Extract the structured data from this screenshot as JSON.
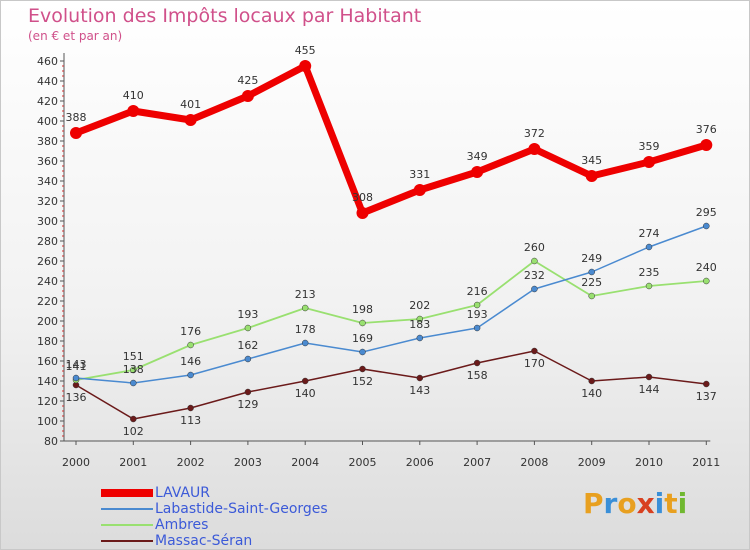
{
  "header": {
    "title": "Evolution des Impôts locaux par Habitant",
    "subtitle": "(en € et par an)"
  },
  "logo": {
    "letters": [
      "P",
      "r",
      "o",
      "x",
      "i",
      "t",
      "i"
    ],
    "colors": [
      "#e8a020",
      "#3a8fd8",
      "#e8a020",
      "#d84020",
      "#3a8fd8",
      "#e8a020",
      "#70b830"
    ]
  },
  "colors": {
    "title": "#d0508a",
    "axis": "#555555",
    "tick_marks": "#d03030",
    "legend_text": "#3c5ad8"
  },
  "chart_data": {
    "type": "line",
    "title": "Evolution des Impôts locaux par Habitant",
    "subtitle": "(en € et par an)",
    "xlabel": "",
    "ylabel": "",
    "x": [
      "2000",
      "2001",
      "2002",
      "2003",
      "2004",
      "2005",
      "2006",
      "2007",
      "2008",
      "2009",
      "2010",
      "2011"
    ],
    "ylim": [
      80,
      460
    ],
    "yticks": [
      "80",
      "100",
      "120",
      "140",
      "160",
      "180",
      "200",
      "220",
      "240",
      "260",
      "280",
      "300",
      "320",
      "340",
      "360",
      "380",
      "400",
      "420",
      "440",
      "460"
    ],
    "grid": false,
    "legend_position": "bottom-left",
    "series": [
      {
        "name": "LAVAUR",
        "color": "#ee0000",
        "values": [
          388,
          410,
          401,
          425,
          455,
          308,
          331,
          349,
          372,
          345,
          359,
          376
        ],
        "labels": [
          "388",
          "410",
          "401",
          "425",
          "455",
          "308",
          "331",
          "349",
          "372",
          "345",
          "359",
          "376"
        ]
      },
      {
        "name": "Labastide-Saint-Georges",
        "color": "#4a8ad0",
        "values": [
          143,
          138,
          146,
          162,
          178,
          169,
          183,
          193,
          232,
          249,
          274,
          295
        ],
        "labels": [
          "143",
          "138",
          "146",
          "162",
          "178",
          "169",
          "183",
          "193",
          "232",
          "249",
          "274",
          "295"
        ]
      },
      {
        "name": "Ambres",
        "color": "#99e070",
        "values": [
          141,
          151,
          176,
          193,
          213,
          198,
          202,
          216,
          260,
          225,
          235,
          240
        ],
        "labels": [
          "141",
          "151",
          "176",
          "193",
          "213",
          "198",
          "202",
          "216",
          "260",
          "225",
          "235",
          "240"
        ]
      },
      {
        "name": "Massac-Séran",
        "color": "#6b1a1a",
        "values": [
          136,
          102,
          113,
          129,
          140,
          152,
          143,
          158,
          170,
          140,
          144,
          137
        ],
        "labels": [
          "136",
          "102",
          "113",
          "129",
          "140",
          "152",
          "143",
          "158",
          "170",
          "140",
          "144",
          "137"
        ]
      }
    ]
  }
}
